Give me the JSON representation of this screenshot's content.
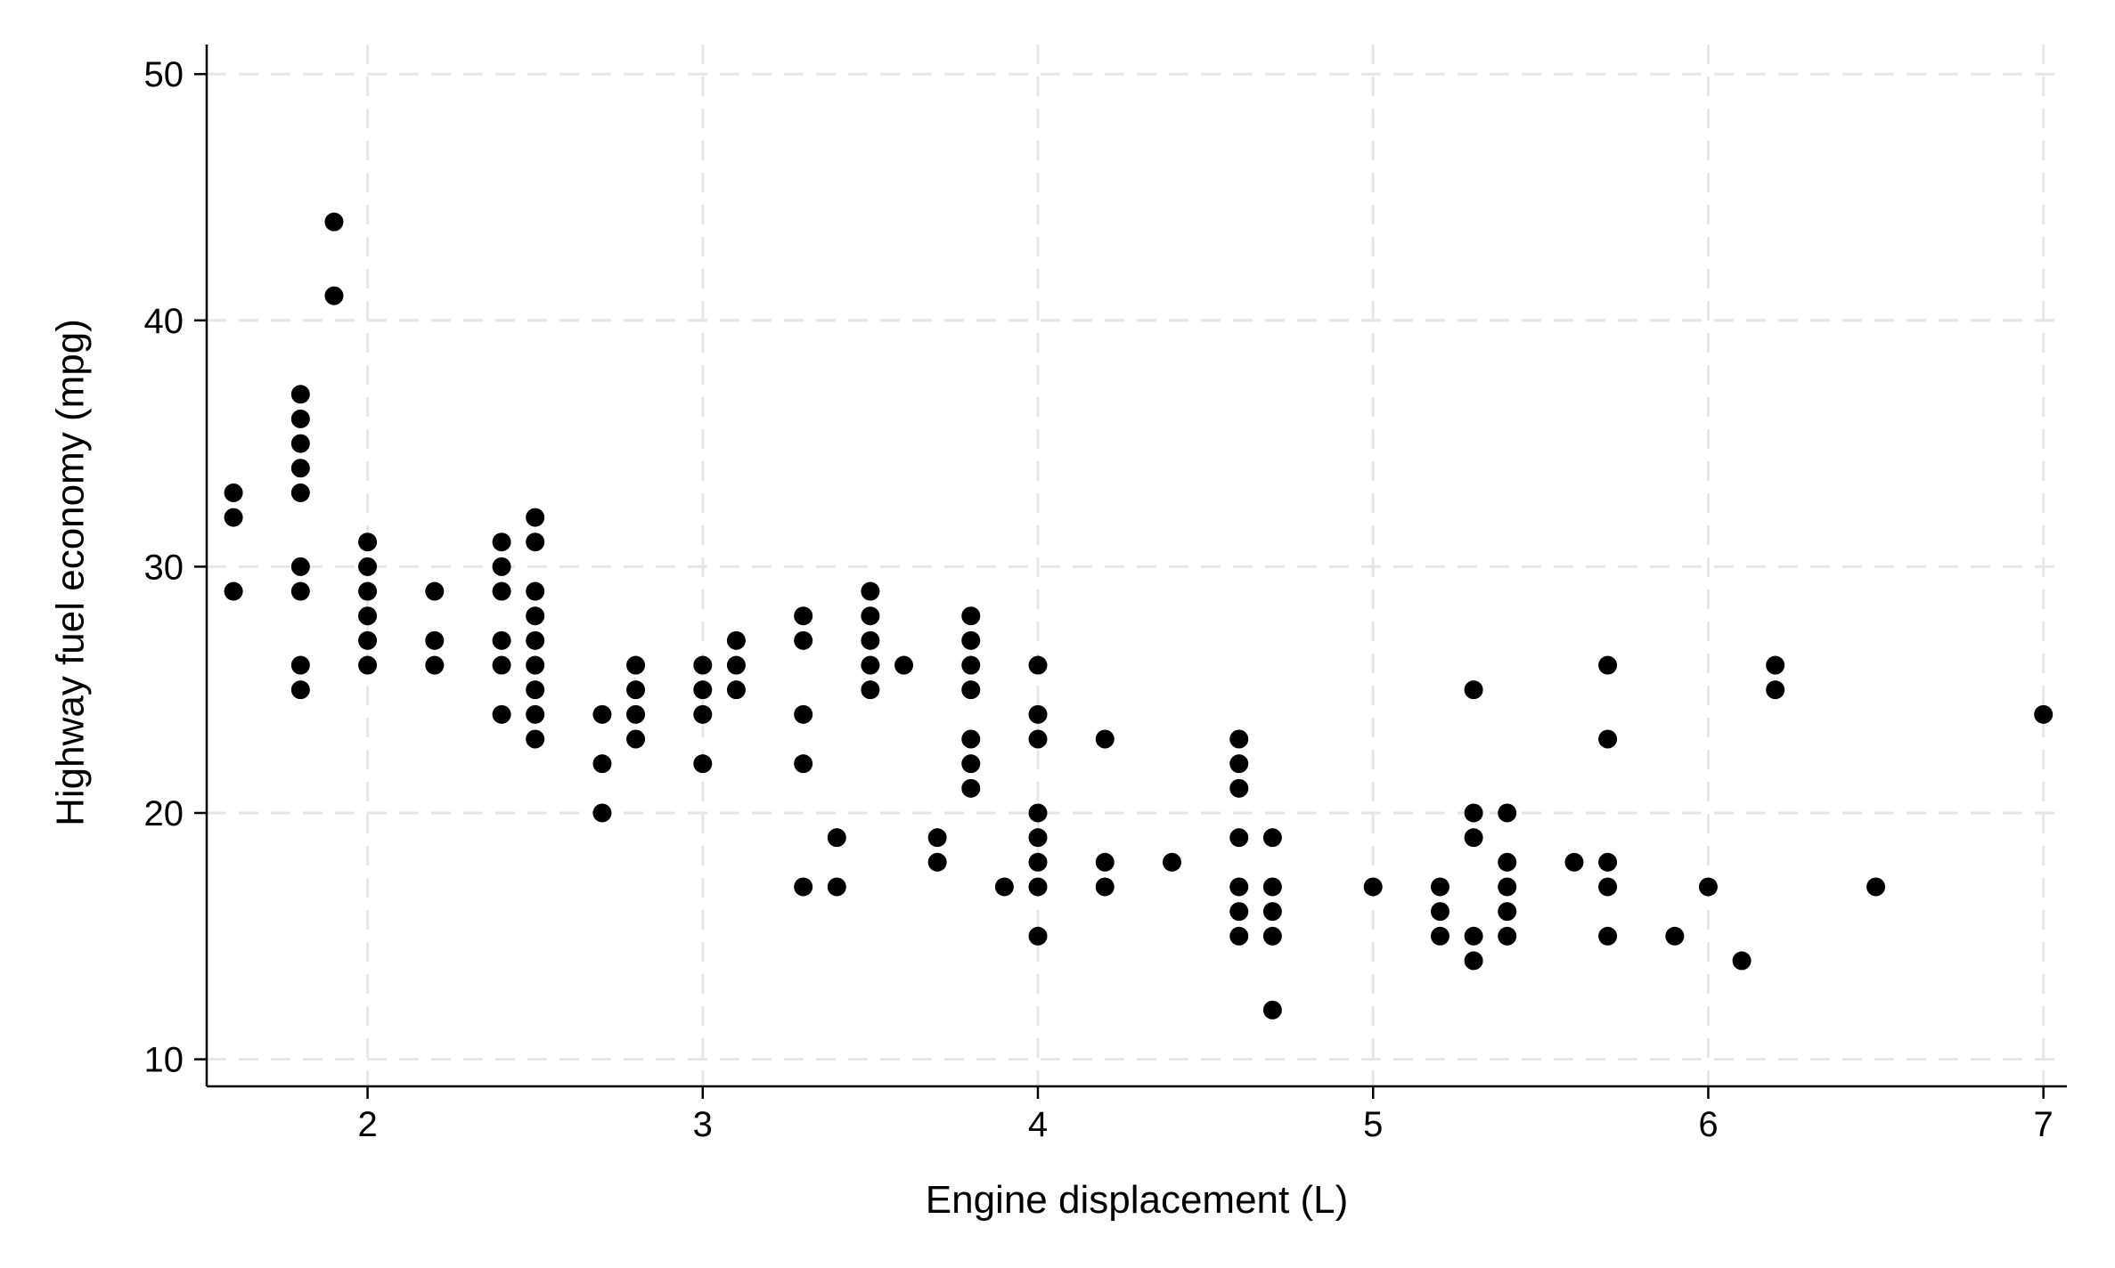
{
  "chart_data": {
    "type": "scatter",
    "title": "",
    "xlabel": "Engine displacement (L)",
    "ylabel": "Highway fuel economy (mpg)",
    "xlim": [
      1.52,
      7.07
    ],
    "ylim": [
      8.9,
      51.2
    ],
    "xticks": [
      2,
      3,
      4,
      5,
      6,
      7
    ],
    "yticks": [
      10,
      20,
      30,
      40,
      50
    ],
    "xtick_labels": [
      "2",
      "3",
      "4",
      "5",
      "6",
      "7"
    ],
    "ytick_labels": [
      "10",
      "20",
      "30",
      "40",
      "50"
    ],
    "grid": true,
    "legend": "none",
    "marker_color": "#000000",
    "grid_color": "#e6e6e6",
    "points": [
      [
        1.6,
        33
      ],
      [
        1.6,
        32
      ],
      [
        1.6,
        29
      ],
      [
        1.8,
        37
      ],
      [
        1.8,
        36
      ],
      [
        1.8,
        35
      ],
      [
        1.8,
        34
      ],
      [
        1.8,
        33
      ],
      [
        1.8,
        30
      ],
      [
        1.8,
        29
      ],
      [
        1.8,
        26
      ],
      [
        1.8,
        25
      ],
      [
        1.9,
        44
      ],
      [
        1.9,
        41
      ],
      [
        2.0,
        31
      ],
      [
        2.0,
        30
      ],
      [
        2.0,
        29
      ],
      [
        2.0,
        28
      ],
      [
        2.0,
        27
      ],
      [
        2.0,
        26
      ],
      [
        2.2,
        29
      ],
      [
        2.2,
        27
      ],
      [
        2.2,
        26
      ],
      [
        2.4,
        31
      ],
      [
        2.4,
        30
      ],
      [
        2.4,
        29
      ],
      [
        2.4,
        27
      ],
      [
        2.4,
        26
      ],
      [
        2.4,
        24
      ],
      [
        2.5,
        32
      ],
      [
        2.5,
        31
      ],
      [
        2.5,
        29
      ],
      [
        2.5,
        28
      ],
      [
        2.5,
        27
      ],
      [
        2.5,
        26
      ],
      [
        2.5,
        25
      ],
      [
        2.5,
        24
      ],
      [
        2.5,
        23
      ],
      [
        2.7,
        24
      ],
      [
        2.7,
        22
      ],
      [
        2.7,
        20
      ],
      [
        2.8,
        26
      ],
      [
        2.8,
        25
      ],
      [
        2.8,
        24
      ],
      [
        2.8,
        23
      ],
      [
        3.0,
        26
      ],
      [
        3.0,
        25
      ],
      [
        3.0,
        24
      ],
      [
        3.0,
        22
      ],
      [
        3.1,
        27
      ],
      [
        3.1,
        26
      ],
      [
        3.1,
        25
      ],
      [
        3.3,
        28
      ],
      [
        3.3,
        27
      ],
      [
        3.3,
        24
      ],
      [
        3.3,
        22
      ],
      [
        3.3,
        17
      ],
      [
        3.4,
        19
      ],
      [
        3.4,
        17
      ],
      [
        3.5,
        29
      ],
      [
        3.5,
        28
      ],
      [
        3.5,
        27
      ],
      [
        3.5,
        26
      ],
      [
        3.5,
        25
      ],
      [
        3.6,
        26
      ],
      [
        3.7,
        19
      ],
      [
        3.7,
        18
      ],
      [
        3.8,
        28
      ],
      [
        3.8,
        27
      ],
      [
        3.8,
        26
      ],
      [
        3.8,
        25
      ],
      [
        3.8,
        23
      ],
      [
        3.8,
        22
      ],
      [
        3.8,
        21
      ],
      [
        3.9,
        17
      ],
      [
        4.0,
        26
      ],
      [
        4.0,
        24
      ],
      [
        4.0,
        23
      ],
      [
        4.0,
        20
      ],
      [
        4.0,
        19
      ],
      [
        4.0,
        18
      ],
      [
        4.0,
        17
      ],
      [
        4.0,
        15
      ],
      [
        4.2,
        23
      ],
      [
        4.2,
        18
      ],
      [
        4.2,
        17
      ],
      [
        4.4,
        18
      ],
      [
        4.6,
        23
      ],
      [
        4.6,
        22
      ],
      [
        4.6,
        21
      ],
      [
        4.6,
        19
      ],
      [
        4.6,
        17
      ],
      [
        4.6,
        16
      ],
      [
        4.6,
        15
      ],
      [
        4.7,
        19
      ],
      [
        4.7,
        17
      ],
      [
        4.7,
        16
      ],
      [
        4.7,
        15
      ],
      [
        4.7,
        12
      ],
      [
        5.0,
        17
      ],
      [
        5.2,
        17
      ],
      [
        5.2,
        16
      ],
      [
        5.2,
        15
      ],
      [
        5.3,
        25
      ],
      [
        5.3,
        20
      ],
      [
        5.3,
        19
      ],
      [
        5.3,
        15
      ],
      [
        5.3,
        14
      ],
      [
        5.4,
        20
      ],
      [
        5.4,
        18
      ],
      [
        5.4,
        17
      ],
      [
        5.4,
        16
      ],
      [
        5.4,
        15
      ],
      [
        5.6,
        18
      ],
      [
        5.7,
        26
      ],
      [
        5.7,
        23
      ],
      [
        5.7,
        18
      ],
      [
        5.7,
        17
      ],
      [
        5.7,
        15
      ],
      [
        5.9,
        15
      ],
      [
        6.0,
        17
      ],
      [
        6.1,
        14
      ],
      [
        6.2,
        26
      ],
      [
        6.2,
        25
      ],
      [
        6.5,
        17
      ],
      [
        7.0,
        24
      ]
    ]
  }
}
